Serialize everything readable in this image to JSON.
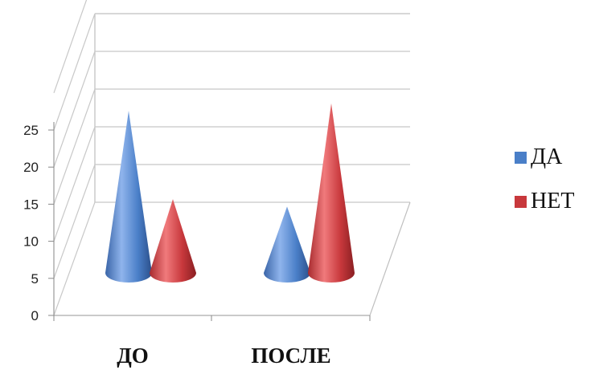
{
  "chart_data": {
    "type": "bar",
    "style": "3d-cone",
    "categories": [
      "ДО",
      "ПОСЛЕ"
    ],
    "series": [
      {
        "name": "ДА",
        "values": [
          22,
          9
        ],
        "color": "#4a7fc8"
      },
      {
        "name": "НЕТ",
        "values": [
          10,
          23
        ],
        "color": "#c8383c"
      }
    ],
    "yticks": [
      "0",
      "5",
      "10",
      "15",
      "20",
      "25"
    ],
    "ylim": [
      0,
      25
    ],
    "grid": true,
    "legend": "right"
  }
}
